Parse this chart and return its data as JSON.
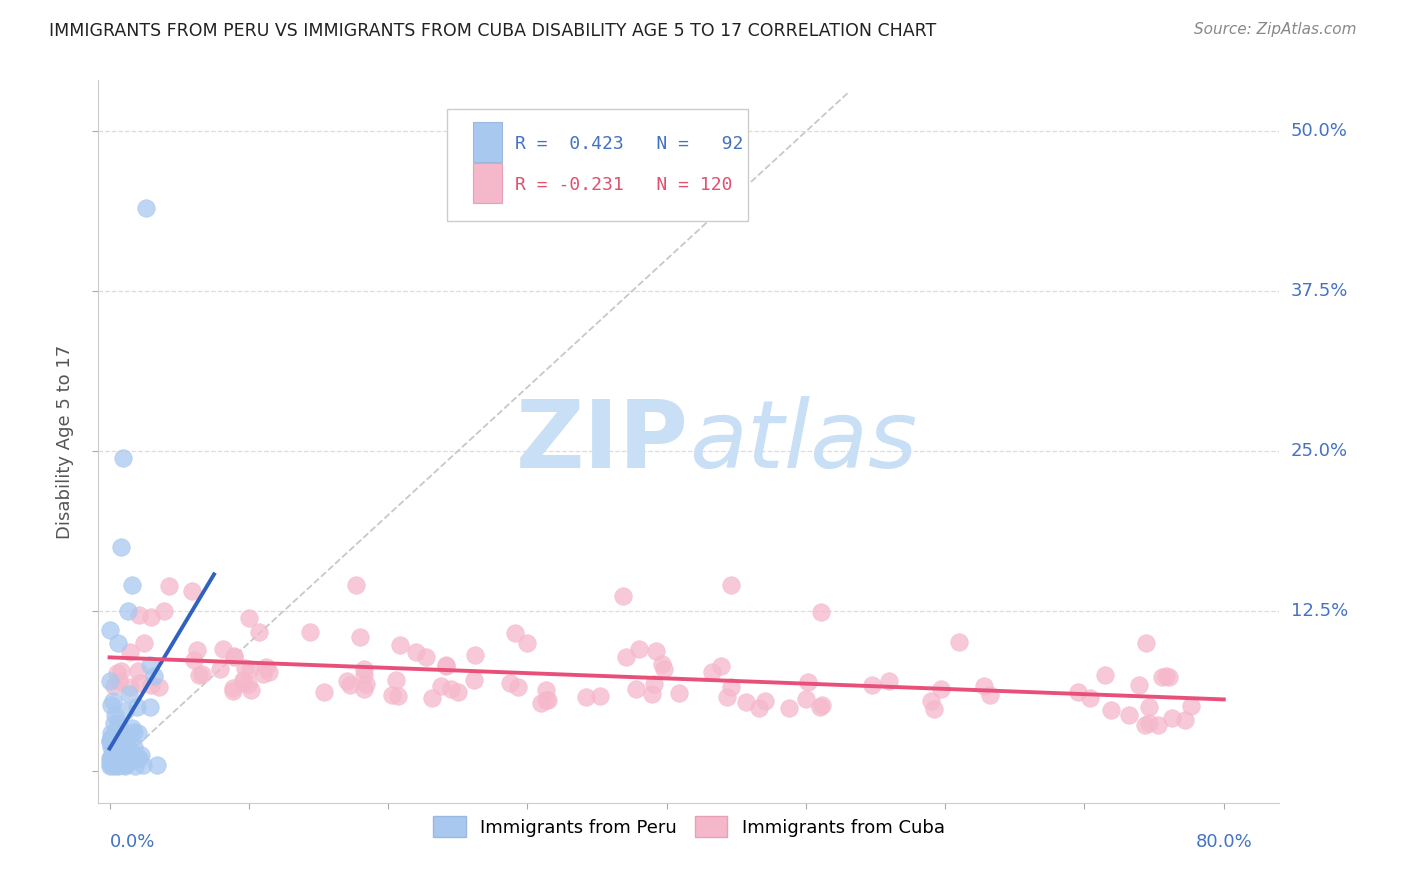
{
  "title": "IMMIGRANTS FROM PERU VS IMMIGRANTS FROM CUBA DISABILITY AGE 5 TO 17 CORRELATION CHART",
  "source": "Source: ZipAtlas.com",
  "ylabel": "Disability Age 5 to 17",
  "peru_color": "#A8C8F0",
  "peru_edge_color": "#A8C8F0",
  "cuba_color": "#F5B8CB",
  "cuba_edge_color": "#F5B8CB",
  "peru_line_color": "#3060C0",
  "cuba_line_color": "#E8507A",
  "diagonal_color": "#C8C8C8",
  "watermark_zip_color": "#C8DFF5",
  "watermark_atlas_color": "#C8DFF5",
  "background_color": "#FFFFFF",
  "title_color": "#222222",
  "axis_label_color": "#4472C4",
  "grid_color": "#DDDDDD",
  "legend_r_color_peru": "#4472C4",
  "legend_r_color_cuba": "#E05070",
  "xlim": [
    -0.008,
    0.84
  ],
  "ylim": [
    -0.025,
    0.54
  ],
  "ytick_vals": [
    0.125,
    0.25,
    0.375,
    0.5
  ],
  "ytick_labels": [
    "12.5%",
    "25.0%",
    "37.5%",
    "50.0%"
  ]
}
